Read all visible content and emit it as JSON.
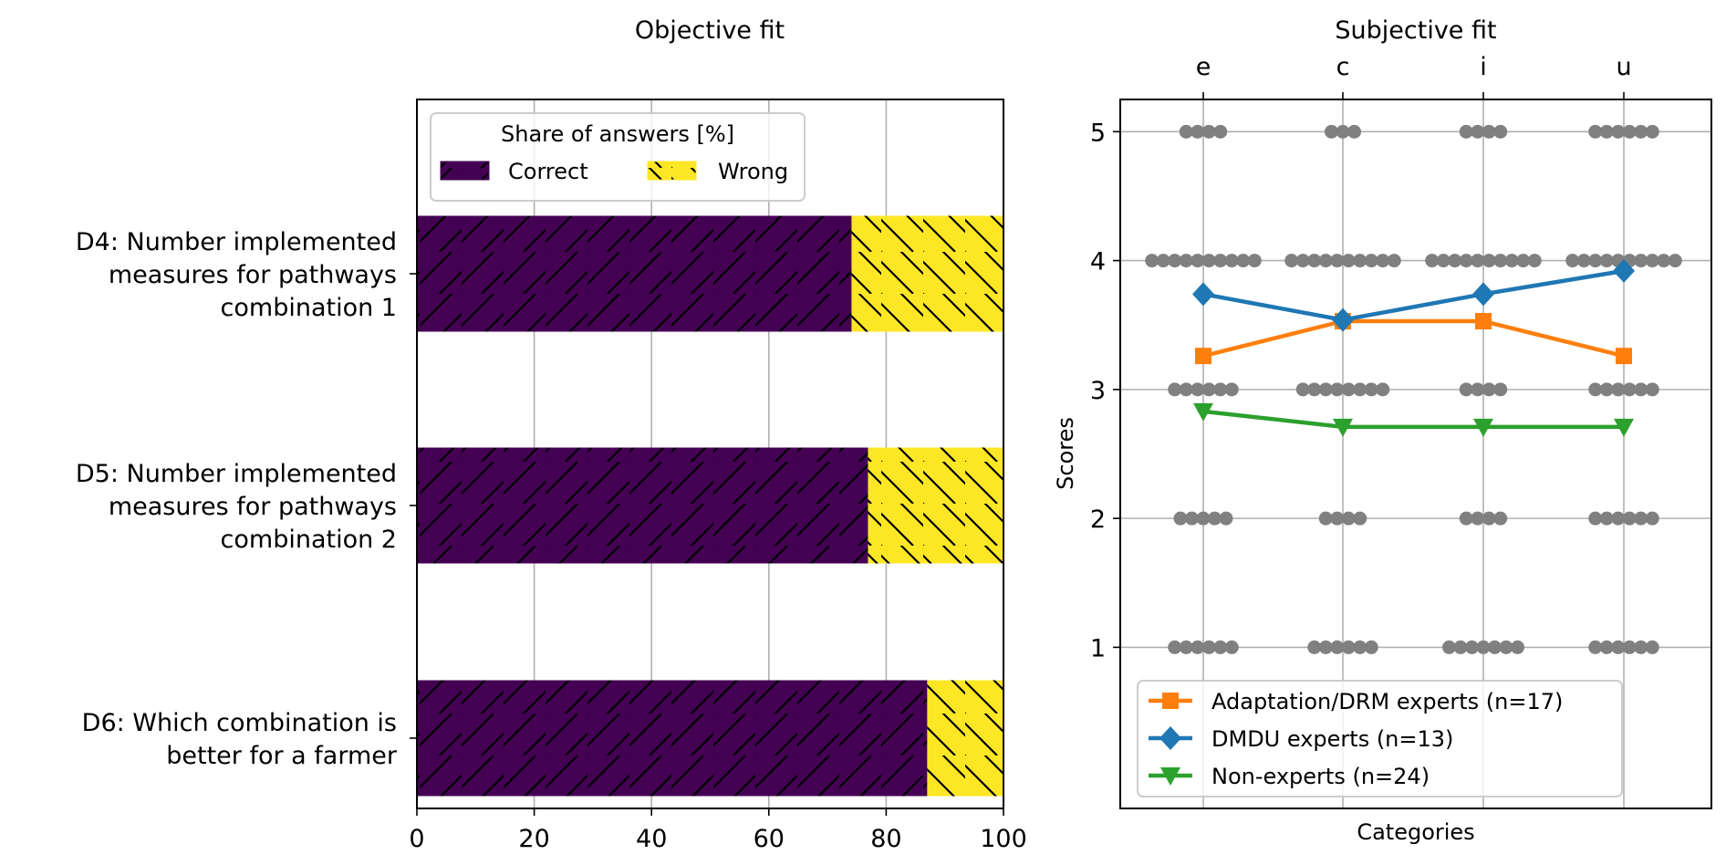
{
  "chart_data": [
    {
      "type": "bar",
      "orientation": "horizontal",
      "stacked": true,
      "title": "Objective fit",
      "xlabel": "",
      "ylabel": "",
      "xlim": [
        0,
        100
      ],
      "xticks": [
        0,
        20,
        40,
        60,
        80,
        100
      ],
      "grid": "x",
      "categories": [
        [
          "D4: Number implemented",
          "measures for pathways",
          "combination 1"
        ],
        [
          "D5: Number implemented",
          "measures for pathways",
          "combination 2"
        ],
        [
          "D6: Which combination is",
          "better for a farmer"
        ]
      ],
      "series": [
        {
          "name": "Correct",
          "color": "#440154",
          "hatch": "/",
          "values": [
            74.1,
            76.9,
            87.0
          ]
        },
        {
          "name": "Wrong",
          "color": "#fde725",
          "hatch": "\\",
          "values": [
            25.9,
            23.1,
            13.0
          ]
        }
      ],
      "legend": {
        "title": "Share of answers [%]",
        "placement": "upper-left",
        "columns": 2
      }
    },
    {
      "type": "line",
      "title": "Subjective fit",
      "xlabel": "Categories",
      "ylabel": "Scores",
      "categories": [
        "e",
        "c",
        "i",
        "u"
      ],
      "xtick_position": "top",
      "ylim": [
        -0.25,
        5.25
      ],
      "yticks": [
        1,
        2,
        3,
        4,
        5
      ],
      "grid": "both",
      "series": [
        {
          "name": "Adaptation/DRM experts (n=17)",
          "color": "#ff7f0e",
          "marker": "square",
          "values": [
            3.26,
            3.53,
            3.53,
            3.26
          ]
        },
        {
          "name": "DMDU experts (n=13)",
          "color": "#1f77b4",
          "marker": "diamond",
          "values": [
            3.74,
            3.54,
            3.74,
            3.92
          ]
        },
        {
          "name": "Non-experts  (n=24)",
          "color": "#2ca02c",
          "marker": "triangle-down",
          "values": [
            2.83,
            2.71,
            2.71,
            2.71
          ]
        }
      ],
      "individual_responses": {
        "color": "#808080",
        "counts_by_score": {
          "5": [
            4,
            3,
            4,
            6
          ],
          "4": [
            10,
            10,
            10,
            10
          ],
          "3": [
            6,
            8,
            4,
            6
          ],
          "2": [
            5,
            4,
            4,
            6
          ],
          "1": [
            6,
            6,
            7,
            6
          ]
        }
      },
      "legend": {
        "placement": "lower-left"
      }
    }
  ]
}
